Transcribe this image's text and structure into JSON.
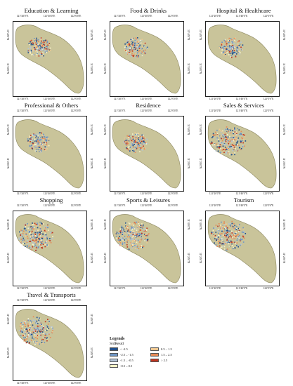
{
  "panels": [
    {
      "title": "Education & Learning",
      "seed": 3,
      "focus": "center"
    },
    {
      "title": "Food & Drinks",
      "seed": 11,
      "focus": "center"
    },
    {
      "title": "Hospital & Healthcare",
      "seed": 17,
      "focus": "center"
    },
    {
      "title": "Professional & Others",
      "seed": 23,
      "focus": "center"
    },
    {
      "title": "Residence",
      "seed": 29,
      "focus": "center"
    },
    {
      "title": "Sales & Services",
      "seed": 31,
      "focus": "wide"
    },
    {
      "title": "Shopping",
      "seed": 37,
      "focus": "wide"
    },
    {
      "title": "Sports & Leisures",
      "seed": 41,
      "focus": "wide"
    },
    {
      "title": "Tourism",
      "seed": 43,
      "focus": "wide"
    },
    {
      "title": "Travel & Transports",
      "seed": 47,
      "focus": "wide"
    }
  ],
  "axis": {
    "top_ticks": [
      "121°20'0\"E",
      "121°40'0\"E",
      "122°0'0\"E"
    ],
    "side_ticks": [
      "31°40'0\"N",
      "31°20'0\"N"
    ]
  },
  "legend": {
    "title": "Legends",
    "subtitle": "StdResid",
    "classes": [
      {
        "label": "< -2.5",
        "color": "#1f4e8c"
      },
      {
        "label": "-2.5 – -1.5",
        "color": "#6f95c4"
      },
      {
        "label": "-1.5 – -0.5",
        "color": "#b3c4d6"
      },
      {
        "label": "-0.5 – 0.5",
        "color": "#f7f2c7"
      },
      {
        "label": "0.5 – 1.5",
        "color": "#efc891"
      },
      {
        "label": "1.5 – 2.5",
        "color": "#e78a55"
      },
      {
        "label": "> 2.5",
        "color": "#c0341f"
      }
    ]
  },
  "colors": {
    "land": "#c9c49a",
    "land_edge": "#8f8a63"
  }
}
